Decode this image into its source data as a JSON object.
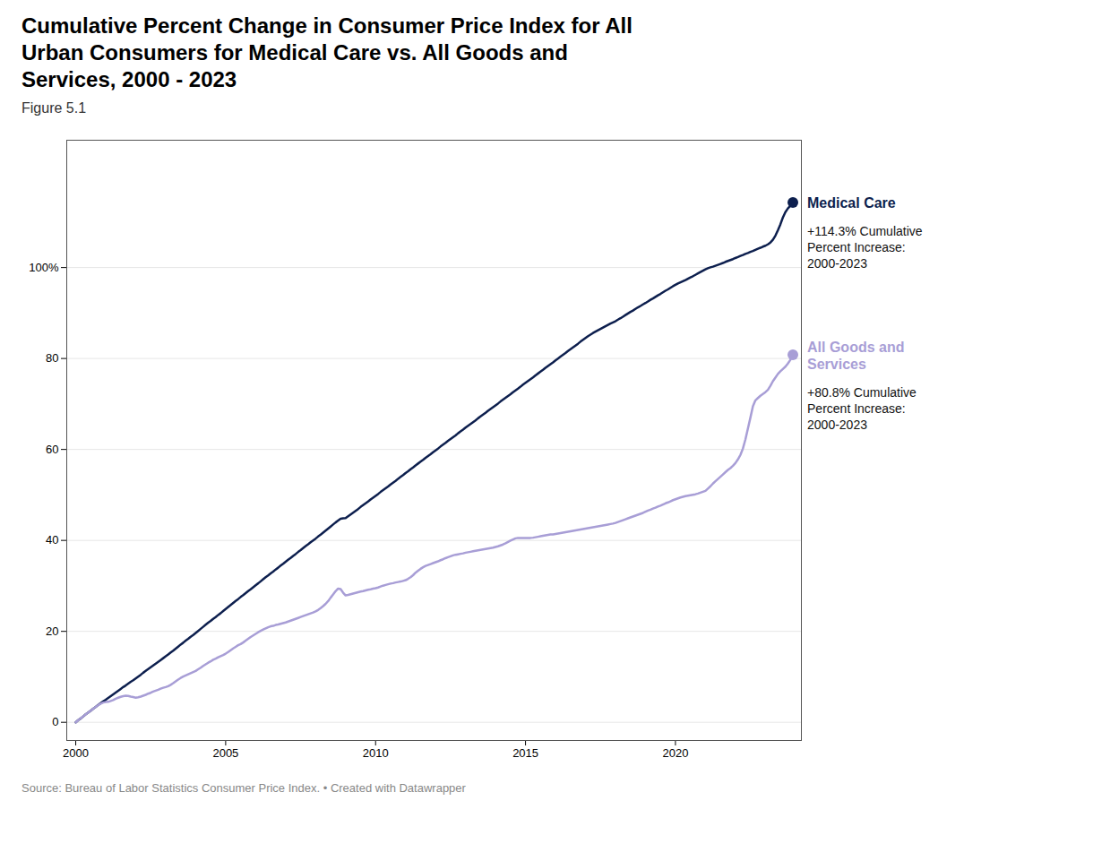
{
  "chart_data": {
    "type": "line",
    "title": "Cumulative Percent Change in Consumer Price Index for All\nUrban Consumers for Medical Care vs. All Goods and\nServices, 2000 - 2023",
    "subtitle": "Figure 5.1",
    "source": "Source: Bureau of Labor Statistics Consumer Price Index.  •  Created with Datawrapper",
    "x": [
      2000.0,
      2000.083,
      2000.167,
      2000.25,
      2000.333,
      2000.417,
      2000.5,
      2000.583,
      2000.667,
      2000.75,
      2000.833,
      2000.917,
      2001.0,
      2001.083,
      2001.167,
      2001.25,
      2001.333,
      2001.417,
      2001.5,
      2001.583,
      2001.667,
      2001.75,
      2001.833,
      2001.917,
      2002.0,
      2002.083,
      2002.167,
      2002.25,
      2002.333,
      2002.417,
      2002.5,
      2002.583,
      2002.667,
      2002.75,
      2002.833,
      2002.917,
      2003.0,
      2003.083,
      2003.167,
      2003.25,
      2003.333,
      2003.417,
      2003.5,
      2003.583,
      2003.667,
      2003.75,
      2003.833,
      2003.917,
      2004.0,
      2004.083,
      2004.167,
      2004.25,
      2004.333,
      2004.417,
      2004.5,
      2004.583,
      2004.667,
      2004.75,
      2004.833,
      2004.917,
      2005.0,
      2005.083,
      2005.167,
      2005.25,
      2005.333,
      2005.417,
      2005.5,
      2005.583,
      2005.667,
      2005.75,
      2005.833,
      2005.917,
      2006.0,
      2006.083,
      2006.167,
      2006.25,
      2006.333,
      2006.417,
      2006.5,
      2006.583,
      2006.667,
      2006.75,
      2006.833,
      2006.917,
      2007.0,
      2007.083,
      2007.167,
      2007.25,
      2007.333,
      2007.417,
      2007.5,
      2007.583,
      2007.667,
      2007.75,
      2007.833,
      2007.917,
      2008.0,
      2008.083,
      2008.167,
      2008.25,
      2008.333,
      2008.417,
      2008.5,
      2008.583,
      2008.667,
      2008.75,
      2008.833,
      2008.917,
      2009.0,
      2009.083,
      2009.167,
      2009.25,
      2009.333,
      2009.417,
      2009.5,
      2009.583,
      2009.667,
      2009.75,
      2009.833,
      2009.917,
      2010.0,
      2010.083,
      2010.167,
      2010.25,
      2010.333,
      2010.417,
      2010.5,
      2010.583,
      2010.667,
      2010.75,
      2010.833,
      2010.917,
      2011.0,
      2011.083,
      2011.167,
      2011.25,
      2011.333,
      2011.417,
      2011.5,
      2011.583,
      2011.667,
      2011.75,
      2011.833,
      2011.917,
      2012.0,
      2012.083,
      2012.167,
      2012.25,
      2012.333,
      2012.417,
      2012.5,
      2012.583,
      2012.667,
      2012.75,
      2012.833,
      2012.917,
      2013.0,
      2013.083,
      2013.167,
      2013.25,
      2013.333,
      2013.417,
      2013.5,
      2013.583,
      2013.667,
      2013.75,
      2013.833,
      2013.917,
      2014.0,
      2014.083,
      2014.167,
      2014.25,
      2014.333,
      2014.417,
      2014.5,
      2014.583,
      2014.667,
      2014.75,
      2014.833,
      2014.917,
      2015.0,
      2015.083,
      2015.167,
      2015.25,
      2015.333,
      2015.417,
      2015.5,
      2015.583,
      2015.667,
      2015.75,
      2015.833,
      2015.917,
      2016.0,
      2016.083,
      2016.167,
      2016.25,
      2016.333,
      2016.417,
      2016.5,
      2016.583,
      2016.667,
      2016.75,
      2016.833,
      2016.917,
      2017.0,
      2017.083,
      2017.167,
      2017.25,
      2017.333,
      2017.417,
      2017.5,
      2017.583,
      2017.667,
      2017.75,
      2017.833,
      2017.917,
      2018.0,
      2018.083,
      2018.167,
      2018.25,
      2018.333,
      2018.417,
      2018.5,
      2018.583,
      2018.667,
      2018.75,
      2018.833,
      2018.917,
      2019.0,
      2019.083,
      2019.167,
      2019.25,
      2019.333,
      2019.417,
      2019.5,
      2019.583,
      2019.667,
      2019.75,
      2019.833,
      2019.917,
      2020.0,
      2020.083,
      2020.167,
      2020.25,
      2020.333,
      2020.417,
      2020.5,
      2020.583,
      2020.667,
      2020.75,
      2020.833,
      2020.917,
      2021.0,
      2021.083,
      2021.167,
      2021.25,
      2021.333,
      2021.417,
      2021.5,
      2021.583,
      2021.667,
      2021.75,
      2021.833,
      2021.917,
      2022.0,
      2022.083,
      2022.167,
      2022.25,
      2022.333,
      2022.417,
      2022.5,
      2022.583,
      2022.667,
      2022.75,
      2022.833,
      2022.917,
      2023.0,
      2023.083,
      2023.167,
      2023.25,
      2023.333,
      2023.417,
      2023.5,
      2023.583,
      2023.667,
      2023.75,
      2023.833,
      2023.917
    ],
    "series": [
      {
        "name": "Medical Care",
        "color": "#0d1f4e",
        "values": [
          0.0,
          0.47,
          0.85,
          1.3,
          1.75,
          2.15,
          2.55,
          3.0,
          3.4,
          3.82,
          4.2,
          4.6,
          4.95,
          5.35,
          5.75,
          6.15,
          6.55,
          6.95,
          7.35,
          7.75,
          8.1,
          8.5,
          8.9,
          9.25,
          9.65,
          10.05,
          10.45,
          10.9,
          11.3,
          11.7,
          12.1,
          12.5,
          12.9,
          13.3,
          13.7,
          14.1,
          14.5,
          14.9,
          15.35,
          15.75,
          16.2,
          16.65,
          17.1,
          17.5,
          17.95,
          18.35,
          18.8,
          19.2,
          19.65,
          20.1,
          20.55,
          21.0,
          21.45,
          21.9,
          22.3,
          22.75,
          23.15,
          23.6,
          24.0,
          24.45,
          24.9,
          25.35,
          25.8,
          26.25,
          26.7,
          27.1,
          27.55,
          27.95,
          28.4,
          28.85,
          29.25,
          29.7,
          30.15,
          30.55,
          31.0,
          31.45,
          31.9,
          32.3,
          32.75,
          33.15,
          33.6,
          34.0,
          34.45,
          34.85,
          35.3,
          35.75,
          36.15,
          36.6,
          37.0,
          37.45,
          37.85,
          38.3,
          38.75,
          39.15,
          39.6,
          40.0,
          40.4,
          40.85,
          41.25,
          41.7,
          42.15,
          42.6,
          43.05,
          43.5,
          43.95,
          44.35,
          44.75,
          44.85,
          44.9,
          45.3,
          45.7,
          46.1,
          46.5,
          46.9,
          47.35,
          47.75,
          48.15,
          48.55,
          49.0,
          49.4,
          49.8,
          50.2,
          50.65,
          51.05,
          51.45,
          51.85,
          52.3,
          52.7,
          53.1,
          53.55,
          53.95,
          54.35,
          54.8,
          55.2,
          55.65,
          56.05,
          56.5,
          56.9,
          57.3,
          57.7,
          58.15,
          58.55,
          58.95,
          59.4,
          59.8,
          60.2,
          60.65,
          61.05,
          61.45,
          61.9,
          62.3,
          62.7,
          63.1,
          63.55,
          63.95,
          64.35,
          64.8,
          65.2,
          65.6,
          66.0,
          66.4,
          66.85,
          67.25,
          67.65,
          68.05,
          68.5,
          68.9,
          69.3,
          69.7,
          70.1,
          70.55,
          70.95,
          71.35,
          71.75,
          72.15,
          72.6,
          73.0,
          73.4,
          73.8,
          74.25,
          74.65,
          75.05,
          75.45,
          75.85,
          76.3,
          76.7,
          77.1,
          77.5,
          77.95,
          78.35,
          78.75,
          79.15,
          79.6,
          80.0,
          80.4,
          80.8,
          81.2,
          81.65,
          82.05,
          82.45,
          82.85,
          83.25,
          83.7,
          84.1,
          84.5,
          84.9,
          85.25,
          85.6,
          85.9,
          86.2,
          86.5,
          86.8,
          87.1,
          87.4,
          87.7,
          87.95,
          88.2,
          88.55,
          88.85,
          89.2,
          89.55,
          89.9,
          90.25,
          90.55,
          90.9,
          91.25,
          91.55,
          91.9,
          92.2,
          92.55,
          92.9,
          93.2,
          93.55,
          93.9,
          94.2,
          94.55,
          94.9,
          95.2,
          95.55,
          95.9,
          96.2,
          96.5,
          96.75,
          97.0,
          97.25,
          97.55,
          97.85,
          98.1,
          98.4,
          98.7,
          99.0,
          99.3,
          99.6,
          99.85,
          100.05,
          100.2,
          100.4,
          100.6,
          100.8,
          101.0,
          101.25,
          101.45,
          101.65,
          101.85,
          102.1,
          102.3,
          102.55,
          102.75,
          103.0,
          103.2,
          103.45,
          103.65,
          103.9,
          104.15,
          104.35,
          104.6,
          104.8,
          105.1,
          105.5,
          106.1,
          107.0,
          108.2,
          109.5,
          111.0,
          112.2,
          113.0,
          113.6,
          114.3
        ]
      },
      {
        "name": "All Goods and\nServices",
        "color": "#a89ed6",
        "values": [
          0.0,
          0.47,
          0.9,
          1.3,
          1.75,
          2.15,
          2.55,
          3.0,
          3.4,
          3.8,
          4.1,
          4.35,
          4.45,
          4.5,
          4.7,
          4.9,
          5.2,
          5.4,
          5.6,
          5.75,
          5.85,
          5.8,
          5.65,
          5.55,
          5.4,
          5.5,
          5.65,
          5.85,
          6.05,
          6.3,
          6.5,
          6.75,
          6.95,
          7.15,
          7.4,
          7.6,
          7.75,
          7.95,
          8.25,
          8.6,
          9.0,
          9.4,
          9.75,
          10.05,
          10.3,
          10.55,
          10.8,
          11.05,
          11.3,
          11.65,
          12.0,
          12.4,
          12.75,
          13.1,
          13.4,
          13.75,
          14.0,
          14.3,
          14.55,
          14.8,
          15.1,
          15.45,
          15.85,
          16.25,
          16.6,
          16.95,
          17.2,
          17.55,
          17.95,
          18.35,
          18.75,
          19.1,
          19.45,
          19.8,
          20.1,
          20.4,
          20.65,
          20.9,
          21.1,
          21.2,
          21.4,
          21.5,
          21.65,
          21.8,
          21.95,
          22.15,
          22.35,
          22.55,
          22.75,
          22.95,
          23.15,
          23.35,
          23.55,
          23.75,
          23.95,
          24.15,
          24.4,
          24.7,
          25.1,
          25.55,
          26.05,
          26.65,
          27.4,
          28.1,
          28.85,
          29.4,
          29.3,
          28.5,
          27.9,
          28.0,
          28.15,
          28.3,
          28.45,
          28.6,
          28.75,
          28.85,
          29.0,
          29.15,
          29.25,
          29.4,
          29.5,
          29.65,
          29.85,
          30.05,
          30.2,
          30.35,
          30.5,
          30.6,
          30.75,
          30.85,
          30.95,
          31.1,
          31.25,
          31.55,
          31.9,
          32.35,
          32.9,
          33.35,
          33.75,
          34.1,
          34.4,
          34.6,
          34.8,
          35.0,
          35.2,
          35.4,
          35.65,
          35.85,
          36.1,
          36.3,
          36.5,
          36.7,
          36.85,
          36.95,
          37.05,
          37.15,
          37.3,
          37.4,
          37.5,
          37.6,
          37.7,
          37.8,
          37.9,
          38.0,
          38.1,
          38.2,
          38.3,
          38.4,
          38.55,
          38.7,
          38.9,
          39.1,
          39.35,
          39.65,
          39.95,
          40.2,
          40.45,
          40.55,
          40.55,
          40.55,
          40.55,
          40.55,
          40.55,
          40.6,
          40.7,
          40.8,
          40.9,
          41.0,
          41.1,
          41.2,
          41.3,
          41.3,
          41.4,
          41.5,
          41.6,
          41.7,
          41.8,
          41.9,
          42.0,
          42.1,
          42.2,
          42.3,
          42.4,
          42.5,
          42.6,
          42.7,
          42.8,
          42.9,
          43.0,
          43.1,
          43.2,
          43.3,
          43.4,
          43.5,
          43.6,
          43.7,
          43.85,
          44.05,
          44.25,
          44.45,
          44.65,
          44.85,
          45.05,
          45.25,
          45.45,
          45.65,
          45.85,
          46.05,
          46.3,
          46.55,
          46.75,
          47.0,
          47.2,
          47.45,
          47.65,
          47.9,
          48.15,
          48.35,
          48.6,
          48.85,
          49.05,
          49.25,
          49.45,
          49.6,
          49.75,
          49.85,
          49.95,
          50.05,
          50.15,
          50.3,
          50.5,
          50.7,
          50.9,
          51.4,
          51.9,
          52.5,
          53.0,
          53.5,
          54.0,
          54.5,
          55.0,
          55.5,
          55.9,
          56.4,
          57.0,
          57.8,
          58.8,
          60.2,
          62.2,
          64.6,
          67.0,
          69.5,
          70.8,
          71.3,
          71.8,
          72.2,
          72.6,
          73.1,
          74.0,
          75.0,
          75.8,
          76.6,
          77.2,
          77.7,
          78.2,
          78.9,
          79.7,
          80.8
        ]
      }
    ],
    "annotations": [
      {
        "series": "Medical Care",
        "text": "+114.3% Cumulative\nPercent Increase:\n2000-2023"
      },
      {
        "series": "All Goods and\nServices",
        "text": "+80.8% Cumulative\nPercent Increase:\n2000-2023"
      }
    ],
    "xlim": [
      1999.7,
      2024.2
    ],
    "xticks": [
      2000,
      2005,
      2010,
      2015,
      2020
    ],
    "ylim": [
      -4,
      128
    ],
    "yticks": [
      0,
      20,
      40,
      60,
      80,
      {
        "value": 100,
        "label": "100%"
      }
    ],
    "grid": true
  }
}
